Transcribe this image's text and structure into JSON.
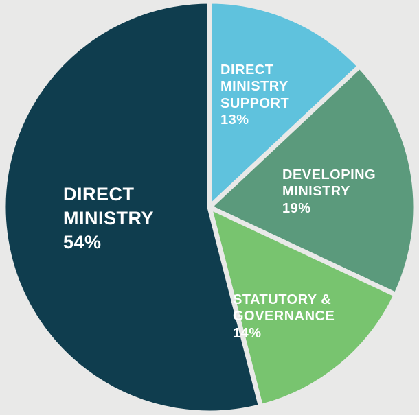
{
  "chart_data": {
    "type": "pie",
    "title": "",
    "slices": [
      {
        "label_lines": [
          "DIRECT",
          "MINISTRY"
        ],
        "pct_text": "54%",
        "value": 54,
        "color": "#0f3d4e"
      },
      {
        "label_lines": [
          "DIRECT",
          "MINISTRY",
          "SUPPORT"
        ],
        "pct_text": "13%",
        "value": 13,
        "color": "#5fc2dd"
      },
      {
        "label_lines": [
          "DEVELOPING",
          "MINISTRY"
        ],
        "pct_text": "19%",
        "value": 19,
        "color": "#5b9a7c"
      },
      {
        "label_lines": [
          "STATUTORY &",
          "GOVERNANCE"
        ],
        "pct_text": "14%",
        "value": 14,
        "color": "#78c46f"
      }
    ],
    "background": "#e9e9e8",
    "slice_gap_color": "#e9e9e8",
    "legend": "none"
  }
}
